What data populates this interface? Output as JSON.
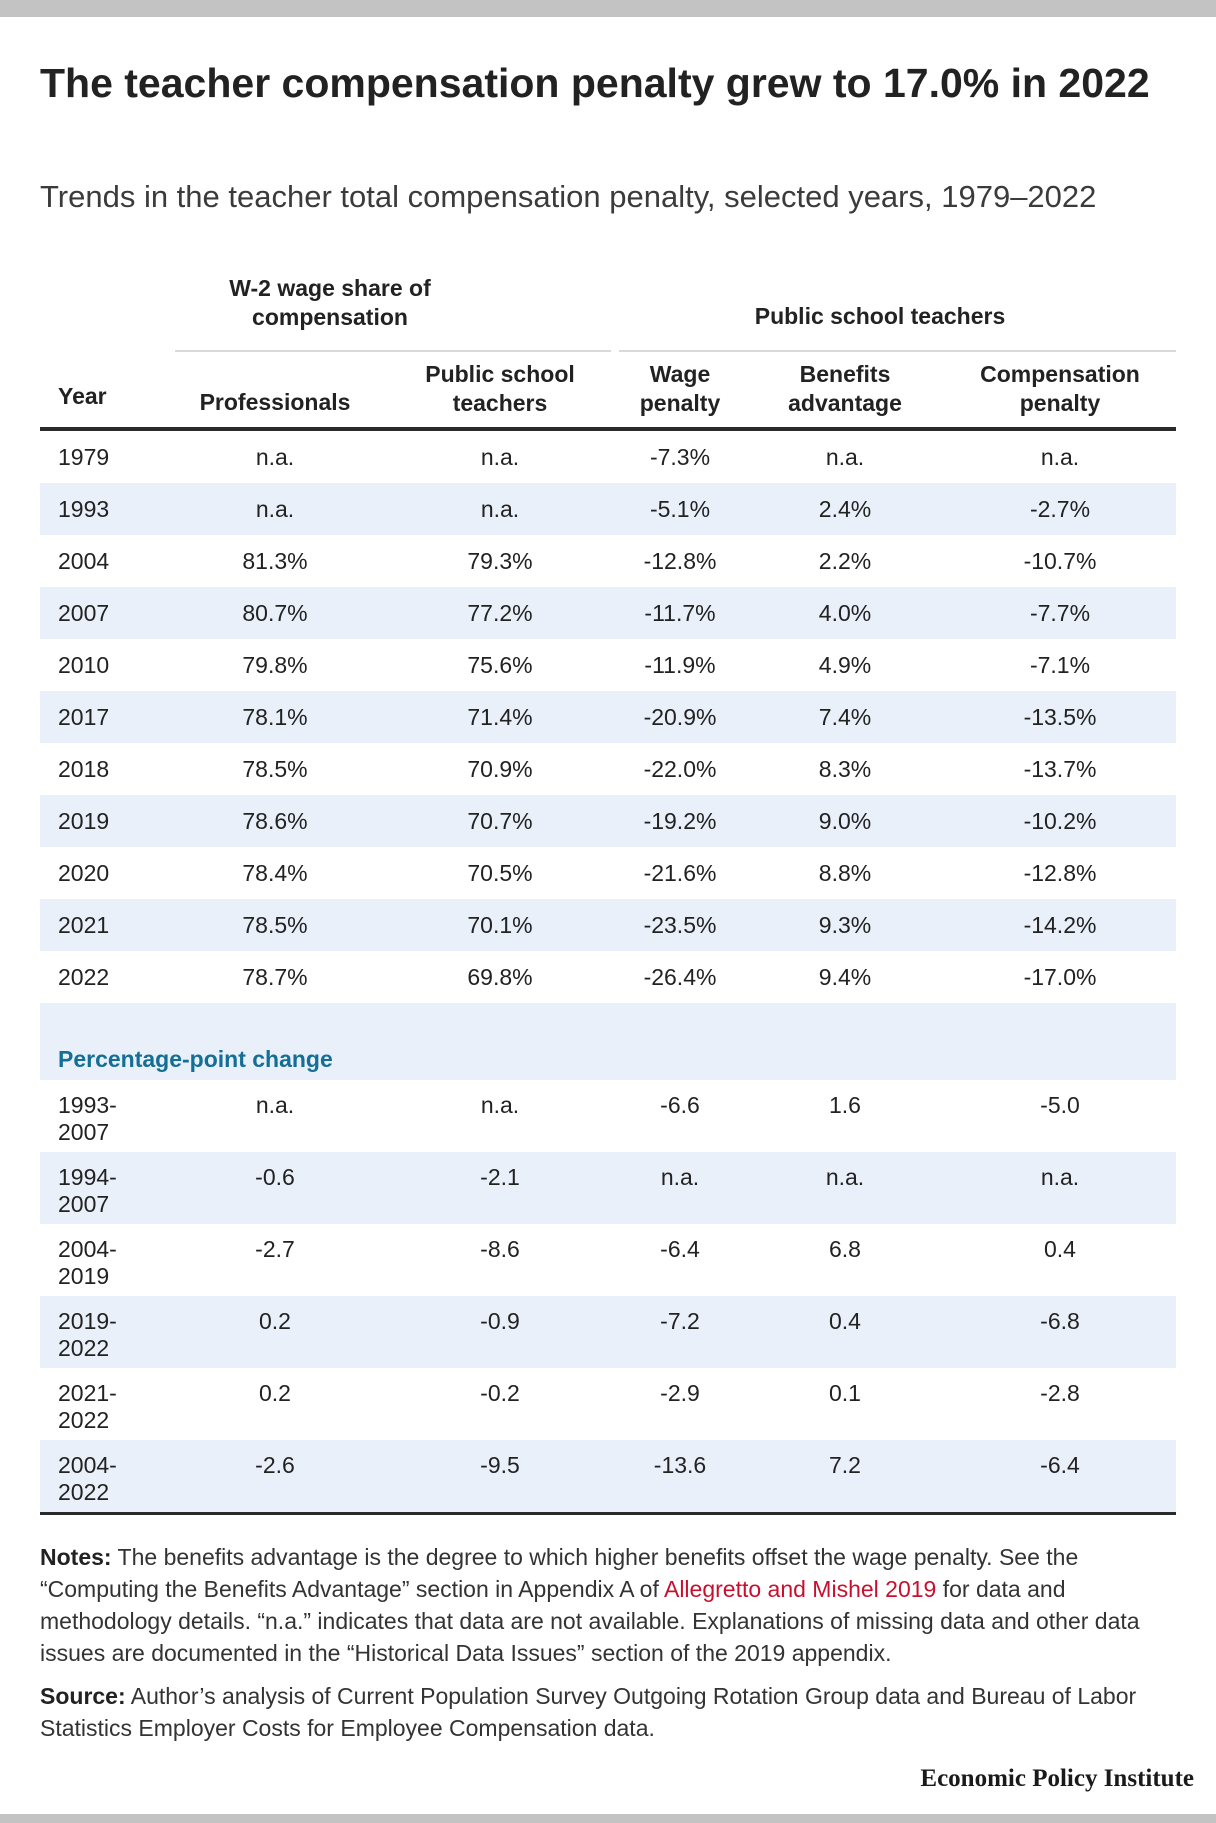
{
  "title": "The teacher compensation penalty grew to 17.0% in 2022",
  "subtitle": "Trends in the teacher total compensation penalty, selected years, 1979–2022",
  "chart_data": {
    "type": "table",
    "column_groups": [
      {
        "label": "W-2 wage share of compensation",
        "columns": [
          "Professionals",
          "Public school teachers"
        ]
      },
      {
        "label": "Public school teachers",
        "columns": [
          "Wage penalty",
          "Benefits advantage",
          "Compensation penalty"
        ]
      }
    ],
    "columns": [
      "Year",
      "Professionals",
      "Public school teachers",
      "Wage penalty",
      "Benefits advantage",
      "Compensation penalty"
    ],
    "rows": [
      [
        "1979",
        "n.a.",
        "n.a.",
        "-7.3%",
        "n.a.",
        "n.a."
      ],
      [
        "1993",
        "n.a.",
        "n.a.",
        "-5.1%",
        "2.4%",
        "-2.7%"
      ],
      [
        "2004",
        "81.3%",
        "79.3%",
        "-12.8%",
        "2.2%",
        "-10.7%"
      ],
      [
        "2007",
        "80.7%",
        "77.2%",
        "-11.7%",
        "4.0%",
        "-7.7%"
      ],
      [
        "2010",
        "79.8%",
        "75.6%",
        "-11.9%",
        "4.9%",
        "-7.1%"
      ],
      [
        "2017",
        "78.1%",
        "71.4%",
        "-20.9%",
        "7.4%",
        "-13.5%"
      ],
      [
        "2018",
        "78.5%",
        "70.9%",
        "-22.0%",
        "8.3%",
        "-13.7%"
      ],
      [
        "2019",
        "78.6%",
        "70.7%",
        "-19.2%",
        "9.0%",
        "-10.2%"
      ],
      [
        "2020",
        "78.4%",
        "70.5%",
        "-21.6%",
        "8.8%",
        "-12.8%"
      ],
      [
        "2021",
        "78.5%",
        "70.1%",
        "-23.5%",
        "9.3%",
        "-14.2%"
      ],
      [
        "2022",
        "78.7%",
        "69.8%",
        "-26.4%",
        "9.4%",
        "-17.0%"
      ]
    ],
    "change_section_label": "Percentage-point change",
    "change_rows": [
      [
        "1993-2007",
        "n.a.",
        "n.a.",
        "-6.6",
        "1.6",
        "-5.0"
      ],
      [
        "1994-2007",
        "-0.6",
        "-2.1",
        "n.a.",
        "n.a.",
        "n.a."
      ],
      [
        "2004-2019",
        "-2.7",
        "-8.6",
        "-6.4",
        "6.8",
        "0.4"
      ],
      [
        "2019-2022",
        "0.2",
        "-0.9",
        "-7.2",
        "0.4",
        "-6.8"
      ],
      [
        "2021-2022",
        "0.2",
        "-0.2",
        "-2.9",
        "0.1",
        "-2.8"
      ],
      [
        "2004-2022",
        "-2.6",
        "-9.5",
        "-13.6",
        "7.2",
        "-6.4"
      ]
    ]
  },
  "notes": {
    "label": "Notes:",
    "text_before_link": "The benefits advantage is the degree to which higher benefits offset the wage penalty. See the “Computing the Benefits Advantage” section in Appendix A of",
    "link_text": "Allegretto and Mishel 2019",
    "text_after_link": "for data and methodology details. “n.a.” indicates that data are not available. Explanations of missing data and other data issues are documented in the “Historical Data Issues” section of the 2019 appendix."
  },
  "source": {
    "label": "Source:",
    "text": "Author’s analysis of Current Population Survey Outgoing Rotation Group data and Bureau of Labor Statistics Employer Costs for Employee Compensation data."
  },
  "brand": "Economic Policy Institute",
  "colors": {
    "accent_blue": "#146e96",
    "link_red": "#c8102e",
    "row_shade": "#e9f0f9",
    "frame_gray": "#c3c3c3"
  }
}
